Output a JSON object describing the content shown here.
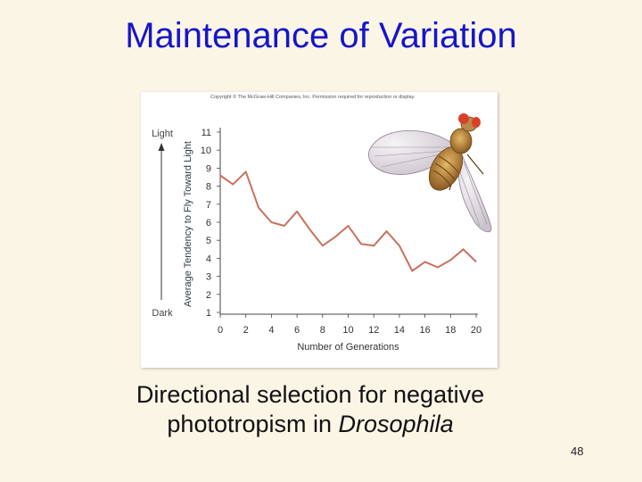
{
  "slide": {
    "title": "Maintenance of Variation",
    "caption_line1": "Directional selection for negative",
    "caption_line2_prefix": "phototropism in ",
    "caption_line2_italic": "Drosophila",
    "slide_number": "48"
  },
  "figure": {
    "copyright": "Copyright © The McGraw-Hill Companies, Inc. Permission required for reproduction or display."
  },
  "chart_data": {
    "type": "line",
    "xlabel": "Number of Generations",
    "ylabel": "Average Tendency to Fly Toward Light",
    "y_scale_top_label": "Light",
    "y_scale_bottom_label": "Dark",
    "xlim": [
      0,
      20
    ],
    "ylim": [
      1,
      11
    ],
    "x_ticks": [
      0,
      2,
      4,
      6,
      8,
      10,
      12,
      14,
      16,
      18,
      20
    ],
    "y_ticks": [
      1,
      2,
      3,
      4,
      5,
      6,
      7,
      8,
      9,
      10,
      11
    ],
    "grid": false,
    "colors": {
      "line": "#c9705e",
      "axis": "#444444",
      "ylabel_text": "#2f3a4a"
    },
    "series": [
      {
        "x": [
          0,
          1,
          2,
          3,
          4,
          5,
          6,
          7,
          8,
          9,
          10,
          11,
          12,
          13,
          14,
          15,
          16,
          17,
          18,
          19,
          20
        ],
        "values": [
          8.6,
          8.1,
          8.8,
          6.8,
          6.0,
          5.8,
          6.6,
          5.6,
          4.7,
          5.2,
          5.8,
          4.8,
          4.7,
          5.5,
          4.7,
          3.3,
          3.8,
          3.5,
          3.9,
          4.5,
          3.8
        ]
      }
    ]
  }
}
